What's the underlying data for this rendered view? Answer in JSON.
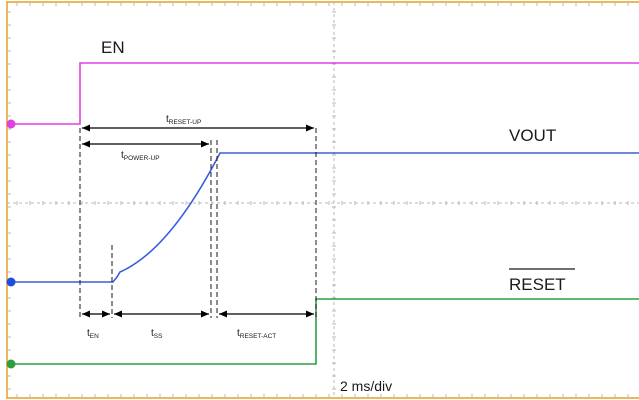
{
  "chart_data": {
    "type": "line",
    "title": "",
    "xlabel": "",
    "ylabel": "",
    "scale_label": "2 ms/div",
    "grid": true,
    "frame_color": "#e8a020",
    "grid_color": "#b8b8b8",
    "series": [
      {
        "name": "EN",
        "color": "#e040e0",
        "channel_marker": true
      },
      {
        "name": "VOUT",
        "color": "#3b5fd9",
        "channel_marker": true
      },
      {
        "name": "RESET",
        "overline": true,
        "color": "#2e9e3e",
        "channel_marker": true
      }
    ],
    "timing_labels": {
      "reset_up": {
        "main": "t",
        "sub": "RESET-UP"
      },
      "power_up": {
        "main": "t",
        "sub": "POWER-UP"
      },
      "en": {
        "main": "t",
        "sub": "EN"
      },
      "ss": {
        "main": "t",
        "sub": "SS"
      },
      "reset_act": {
        "main": "t",
        "sub": "RESET-ACT"
      }
    }
  }
}
